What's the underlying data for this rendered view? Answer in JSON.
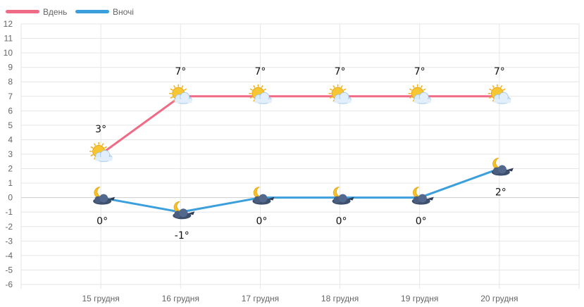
{
  "chart_data": {
    "type": "line",
    "categories": [
      "15 грудня",
      "16 грудня",
      "17 грудня",
      "18 грудня",
      "19 грудня",
      "20 грудня"
    ],
    "ylim": [
      -6,
      12
    ],
    "yticks": [
      12,
      11,
      10,
      9,
      8,
      7,
      6,
      5,
      4,
      3,
      2,
      1,
      0,
      -1,
      -2,
      -3,
      -4,
      -5,
      -6
    ],
    "grid": true,
    "legend_position": "top-left",
    "series": [
      {
        "name": "Вдень",
        "color": "#ef6b86",
        "values": [
          3,
          7,
          7,
          7,
          7,
          7
        ],
        "labels": [
          "3°",
          "7°",
          "7°",
          "7°",
          "7°",
          "7°"
        ],
        "icons": [
          "sun-cloud-icon",
          "sun-cloud-icon",
          "sun-cloud-icon",
          "sun-cloud-icon",
          "sun-cloud-icon",
          "sun-cloud-icon"
        ]
      },
      {
        "name": "Вночі",
        "color": "#3b9fdc",
        "values": [
          0,
          -1,
          0,
          0,
          0,
          2
        ],
        "labels": [
          "0°",
          "-1°",
          "0°",
          "0°",
          "0°",
          "2°"
        ],
        "icons": [
          "moon-cloud-icon",
          "moon-cloud-icon",
          "moon-cloud-icon",
          "moon-cloud-icon",
          "moon-cloud-icon",
          "moon-cloud-icon"
        ]
      }
    ]
  }
}
